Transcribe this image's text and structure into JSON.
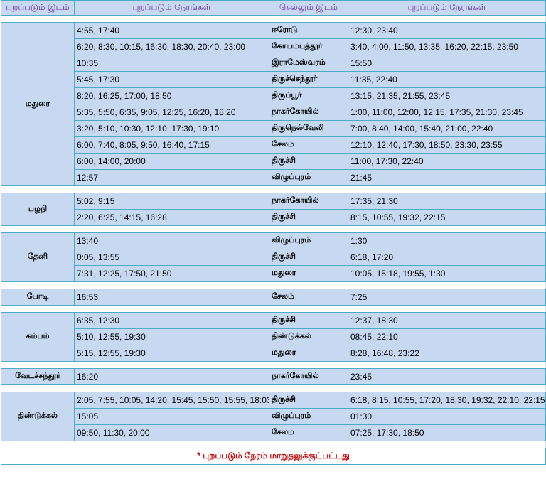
{
  "headers": [
    "புறப்படும் இடம்",
    "புறப்படும் நேரங்கள்",
    "செல்லும் இடம்",
    "புறப்படும் நேரங்கள்"
  ],
  "groups": [
    {
      "source": "மதுரை",
      "rows": [
        [
          "4:55, 17:40",
          "ஈரோடு",
          "12:30, 23:40"
        ],
        [
          "6:20, 8:30, 10:15, 16:30, 18:30, 20:40, 23:00",
          "கோயம்புத்தூர்",
          "3:40, 4:00, 11:50, 13:35, 16:20, 22:15, 23:50"
        ],
        [
          "10:35",
          "இராமேஸ்வரம்",
          "15:50"
        ],
        [
          "5:45, 17:30",
          "திருச்செந்தூர்",
          "11:35, 22:40"
        ],
        [
          "8:20, 16:25, 17:00, 18:50",
          "திருப்பூர்",
          "13:15, 21:35, 21:55, 23:45"
        ],
        [
          "5:35, 5:50, 6:35, 9:05, 12:25, 16:20, 18:20",
          "நாகர்கோயில்",
          "1:00, 11:00, 12:00, 12:15, 17:35, 21:30, 23:45"
        ],
        [
          "3:20, 5:10, 10:30, 12:10, 17:30, 19:10",
          "திருநெல்வேலி",
          "7:00, 8:40, 14:00, 15:40, 21:00, 22:40"
        ],
        [
          "6:00, 7:40, 8:05, 9:50, 16:40, 17:15",
          "சேலம்",
          "12:10, 12:40, 17:30, 18:50, 23:30, 23:55"
        ],
        [
          "6:00, 14:00, 20:00",
          "திருச்சி",
          "11:00, 17:30, 22:40"
        ],
        [
          "12:57",
          "விழுப்புரம்",
          "21:45"
        ]
      ]
    },
    {
      "source": "பழநி",
      "rows": [
        [
          "5:02, 9:15",
          "நாகர்கோயில்",
          "17:35, 21:30"
        ],
        [
          "2:20, 6:25, 14:15, 16:28",
          "திருச்சி",
          "8:15, 10:55, 19:32, 22:15"
        ]
      ]
    },
    {
      "source": "தேனி",
      "rows": [
        [
          "13:40",
          "விழுப்புரம்",
          " 1:30"
        ],
        [
          " 0:05, 13:55",
          "திருச்சி",
          "6:18, 17:20"
        ],
        [
          "7:31, 12:25, 17:50, 21:50",
          "மதுரை",
          "10:05, 15:18, 19:55, 1:30"
        ]
      ]
    },
    {
      "source": "போடி",
      "rows": [
        [
          "16:53",
          "சேலம்",
          " 7:25"
        ]
      ]
    },
    {
      "source": "கம்பம்",
      "rows": [
        [
          "6:35, 12:30",
          "திருச்சி",
          "12:37, 18:30"
        ],
        [
          "5:10, 12:55, 19:30",
          "திண்டுக்கல்",
          "08:45, 22:10"
        ],
        [
          "5:15, 12:55, 19:30",
          "மதுரை",
          "8:28, 16:48, 23:22"
        ]
      ]
    },
    {
      "source": "வேடச்சந்தூர்",
      "rows": [
        [
          "16:20",
          "நாகர்கோயில்",
          "23:45"
        ]
      ]
    },
    {
      "source": "திண்டுக்கல்",
      "rows": [
        [
          "2:05, 7:55, 10:05, 14:20, 15:45, 15:50, 15:55, 18:03",
          "திருச்சி",
          "6:18, 8:15, 10:55, 17:20, 18:30, 19:32, 22:10, 22:15"
        ],
        [
          "15:05",
          "விழுப்புரம்",
          "01:30"
        ],
        [
          "09:50, 11:30, 20:00",
          "சேலம்",
          "07:25, 17:30, 18:50"
        ]
      ]
    }
  ],
  "footer": "*  புறப்படும் நேரம் மாறுதலுக்குட்பட்டது",
  "colors": {
    "cell_bg": "#c6d9f0",
    "border": "#4bacc6",
    "header_text": "#7030a0",
    "footer_text": "#c00000"
  }
}
